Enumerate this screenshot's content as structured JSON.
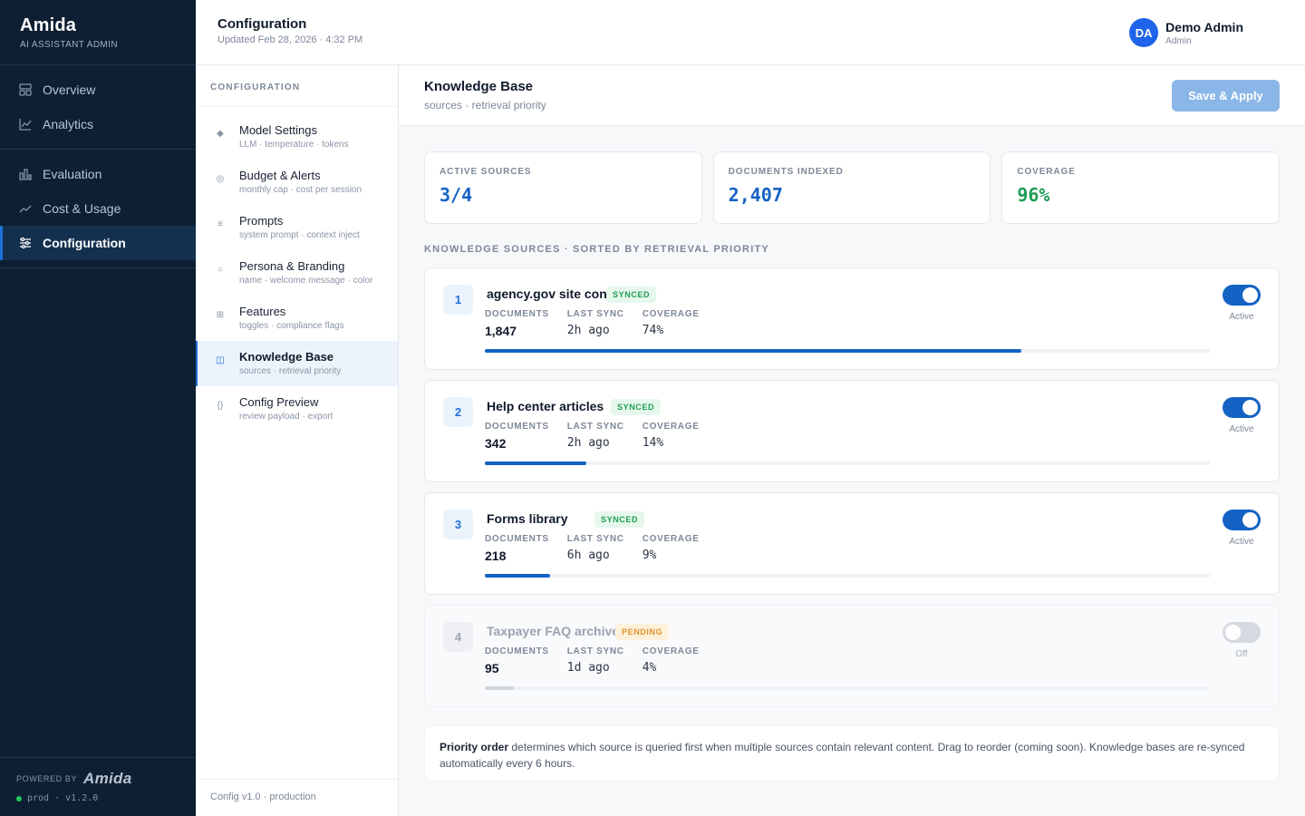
{
  "app": {
    "name": "Amida",
    "subtitle": "AI ASSISTANT ADMIN"
  },
  "nav": {
    "groups": [
      [
        {
          "label": "Overview",
          "icon": "layout-grid-icon"
        },
        {
          "label": "Analytics",
          "icon": "line-chart-icon"
        }
      ],
      [
        {
          "label": "Evaluation",
          "icon": "bar-chart-icon"
        },
        {
          "label": "Cost & Usage",
          "icon": "trend-icon"
        },
        {
          "label": "Configuration",
          "icon": "sliders-icon",
          "active": true
        }
      ]
    ],
    "footer": {
      "powered_by": "POWERED BY",
      "logo_text": "Amida",
      "env": "prod · v1.2.0"
    }
  },
  "header": {
    "title": "Configuration",
    "updated": "Updated Feb 28, 2026 · 4:32 PM"
  },
  "user": {
    "initials": "DA",
    "name": "Demo Admin",
    "role": "Admin",
    "avatar_color": "#1e63e9"
  },
  "subnav": {
    "heading": "CONFIGURATION",
    "items": [
      {
        "label": "Model Settings",
        "desc": "LLM · temperature · tokens",
        "glyph": "◆",
        "icon": "diamond-icon"
      },
      {
        "label": "Budget & Alerts",
        "desc": "monthly cap · cost per session",
        "glyph": "◎",
        "icon": "target-icon"
      },
      {
        "label": "Prompts",
        "desc": "system prompt · context inject",
        "glyph": "≡",
        "icon": "lines-icon"
      },
      {
        "label": "Persona & Branding",
        "desc": "name · welcome message · color",
        "glyph": "○",
        "icon": "circle-icon"
      },
      {
        "label": "Features",
        "desc": "toggles · compliance flags",
        "glyph": "⊞",
        "icon": "grid-icon"
      },
      {
        "label": "Knowledge Base",
        "desc": "sources · retrieval priority",
        "glyph": "◫",
        "icon": "book-icon",
        "active": true
      },
      {
        "label": "Config Preview",
        "desc": "review payload · export",
        "glyph": "{}",
        "icon": "braces-icon"
      }
    ],
    "footer": "Config v1.0 · production"
  },
  "panel": {
    "title": "Knowledge Base",
    "subtitle": "sources · retrieval priority",
    "save_label": "Save & Apply"
  },
  "stats": [
    {
      "label": "ACTIVE SOURCES",
      "value": "3/4",
      "color": "#1462c4"
    },
    {
      "label": "DOCUMENTS INDEXED",
      "value": "2,407",
      "color": "#1462c4"
    },
    {
      "label": "COVERAGE",
      "value": "96%",
      "color": "#1f9d55"
    }
  ],
  "sources_heading": "KNOWLEDGE SOURCES · SORTED BY RETRIEVAL PRIORITY",
  "meta_labels": {
    "documents": "DOCUMENTS",
    "last_sync": "LAST SYNC",
    "coverage": "COVERAGE"
  },
  "sources": [
    {
      "rank": "1",
      "name": "agency.gov site content",
      "status": "SYNCED",
      "documents": "1,847",
      "last_sync": "2h ago",
      "coverage": "74%",
      "coverage_fraction": 0.74,
      "active": true,
      "toggle_label": "Active"
    },
    {
      "rank": "2",
      "name": "Help center articles",
      "status": "SYNCED",
      "documents": "342",
      "last_sync": "2h ago",
      "coverage": "14%",
      "coverage_fraction": 0.14,
      "active": true,
      "toggle_label": "Active"
    },
    {
      "rank": "3",
      "name": "Forms library",
      "status": "SYNCED",
      "documents": "218",
      "last_sync": "6h ago",
      "coverage": "9%",
      "coverage_fraction": 0.09,
      "active": true,
      "toggle_label": "Active"
    },
    {
      "rank": "4",
      "name": "Taxpayer FAQ archive",
      "status": "PENDING",
      "documents": "95",
      "last_sync": "1d ago",
      "coverage": "4%",
      "coverage_fraction": 0.04,
      "active": false,
      "toggle_label": "Off"
    }
  ],
  "note": {
    "bold": "Priority order",
    "text": " determines which source is queried first when multiple sources contain relevant content. Drag to reorder (coming soon). Knowledge bases are re-synced automatically every 6 hours."
  }
}
